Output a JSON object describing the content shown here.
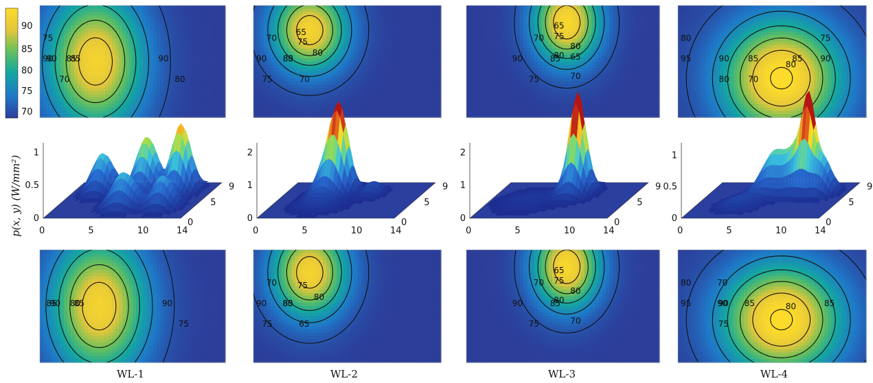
{
  "chart_data": {
    "type": "heatmap",
    "title": "",
    "colorbar": {
      "range": [
        68,
        95
      ],
      "ticks": [
        "90",
        "85",
        "80",
        "75",
        "70"
      ]
    },
    "surface_ylabel": "p(x, y)  (W/mm²)",
    "surface_axes": {
      "x_ticks": [
        "0",
        "5",
        "10",
        "14"
      ],
      "y_ticks": [
        "0",
        "5",
        "9"
      ]
    },
    "workloads": [
      {
        "name": "WL-1",
        "z_ticks": [
          "0",
          "0.5",
          "1"
        ],
        "z_max": 1.15,
        "hotspots": [
          {
            "x": 3.0,
            "y": 6.5,
            "amp": 0.6,
            "sx": 1.0,
            "sy": 1.2
          },
          {
            "x": 7.5,
            "y": 6.5,
            "amp": 0.85,
            "sx": 1.0,
            "sy": 1.2
          },
          {
            "x": 11.0,
            "y": 6.5,
            "amp": 1.05,
            "sx": 0.9,
            "sy": 1.1
          },
          {
            "x": 7.0,
            "y": 2.5,
            "amp": 0.55,
            "sx": 1.2,
            "sy": 1.0
          },
          {
            "x": 11.0,
            "y": 2.5,
            "amp": 0.5,
            "sx": 1.0,
            "sy": 1.0
          }
        ],
        "top_map": {
          "hotspots": [
            {
              "x": 0.3,
              "y": 0.5,
              "amp": 25,
              "sx": 0.18,
              "sy": 0.42
            }
          ],
          "contour_labels": [
            "90",
            "90",
            "90",
            "85",
            "85",
            "80",
            "75",
            "70"
          ]
        },
        "bottom_map": {
          "hotspots": [
            {
              "x": 0.32,
              "y": 0.5,
              "amp": 25,
              "sx": 0.18,
              "sy": 0.42
            }
          ],
          "contour_labels": [
            "90",
            "90",
            "85",
            "85",
            "80",
            "75"
          ]
        }
      },
      {
        "name": "WL-2",
        "z_ticks": [
          "0",
          "1",
          "2"
        ],
        "z_max": 2.3,
        "hotspots": [
          {
            "x": 5.5,
            "y": 6.5,
            "amp": 2.1,
            "sx": 0.8,
            "sy": 0.9
          },
          {
            "x": 4.5,
            "y": 6.0,
            "amp": 1.1,
            "sx": 1.0,
            "sy": 1.2
          },
          {
            "x": 9.0,
            "y": 6.0,
            "amp": 0.4,
            "sx": 0.8,
            "sy": 0.9
          },
          {
            "x": 5.0,
            "y": 3.0,
            "amp": 0.25,
            "sx": 1.6,
            "sy": 1.4
          }
        ],
        "top_map": {
          "hotspots": [
            {
              "x": 0.3,
              "y": 0.22,
              "amp": 25,
              "sx": 0.14,
              "sy": 0.26
            }
          ],
          "contour_labels": [
            "90",
            "85",
            "80",
            "80",
            "75",
            "75",
            "70",
            "70",
            "65"
          ]
        },
        "bottom_map": {
          "hotspots": [
            {
              "x": 0.3,
              "y": 0.2,
              "amp": 25,
              "sx": 0.14,
              "sy": 0.28
            }
          ],
          "contour_labels": [
            "90",
            "85",
            "80",
            "80",
            "75",
            "75",
            "70",
            "65"
          ]
        }
      },
      {
        "name": "WL-3",
        "z_ticks": [
          "0",
          "1",
          "2"
        ],
        "z_max": 2.3,
        "hotspots": [
          {
            "x": 8.0,
            "y": 6.5,
            "amp": 2.15,
            "sx": 0.7,
            "sy": 0.8
          },
          {
            "x": 8.0,
            "y": 6.0,
            "amp": 1.0,
            "sx": 1.0,
            "sy": 1.2
          },
          {
            "x": 4.0,
            "y": 4.0,
            "amp": 0.15,
            "sx": 2.0,
            "sy": 2.0
          }
        ],
        "top_map": {
          "hotspots": [
            {
              "x": 0.52,
              "y": 0.15,
              "amp": 26,
              "sx": 0.12,
              "sy": 0.26
            }
          ],
          "contour_labels": [
            "90",
            "85",
            "80",
            "80",
            "75",
            "75",
            "70",
            "70",
            "65",
            "65"
          ]
        },
        "bottom_map": {
          "hotspots": [
            {
              "x": 0.52,
              "y": 0.15,
              "amp": 26,
              "sx": 0.12,
              "sy": 0.26
            }
          ],
          "contour_labels": [
            "90",
            "85",
            "80",
            "80",
            "75",
            "75",
            "70",
            "70",
            "65"
          ]
        }
      },
      {
        "name": "WL-4",
        "z_ticks": [
          "0",
          "0.5",
          "1"
        ],
        "z_max": 1.2,
        "hotspots": [
          {
            "x": 6.5,
            "y": 6.5,
            "amp": 0.65,
            "sx": 1.2,
            "sy": 1.2
          },
          {
            "x": 9.0,
            "y": 6.5,
            "amp": 0.7,
            "sx": 1.0,
            "sy": 1.2
          },
          {
            "x": 10.0,
            "y": 6.5,
            "amp": 1.05,
            "sx": 0.6,
            "sy": 0.8
          },
          {
            "x": 11.5,
            "y": 6.0,
            "amp": 0.6,
            "sx": 0.9,
            "sy": 1.0
          },
          {
            "x": 4.5,
            "y": 3.0,
            "amp": 0.15,
            "sx": 1.5,
            "sy": 1.5
          }
        ],
        "top_map": {
          "hotspots": [
            {
              "x": 0.55,
              "y": 0.65,
              "amp": 28,
              "sx": 0.22,
              "sy": 0.36
            }
          ],
          "contour_labels": [
            "95",
            "90",
            "90",
            "85",
            "85",
            "80",
            "80",
            "80",
            "75",
            "70"
          ]
        },
        "bottom_map": {
          "hotspots": [
            {
              "x": 0.55,
              "y": 0.62,
              "amp": 28,
              "sx": 0.22,
              "sy": 0.34
            }
          ],
          "contour_labels": [
            "95",
            "90",
            "90",
            "85",
            "85",
            "80",
            "80",
            "75",
            "70"
          ]
        }
      }
    ]
  }
}
